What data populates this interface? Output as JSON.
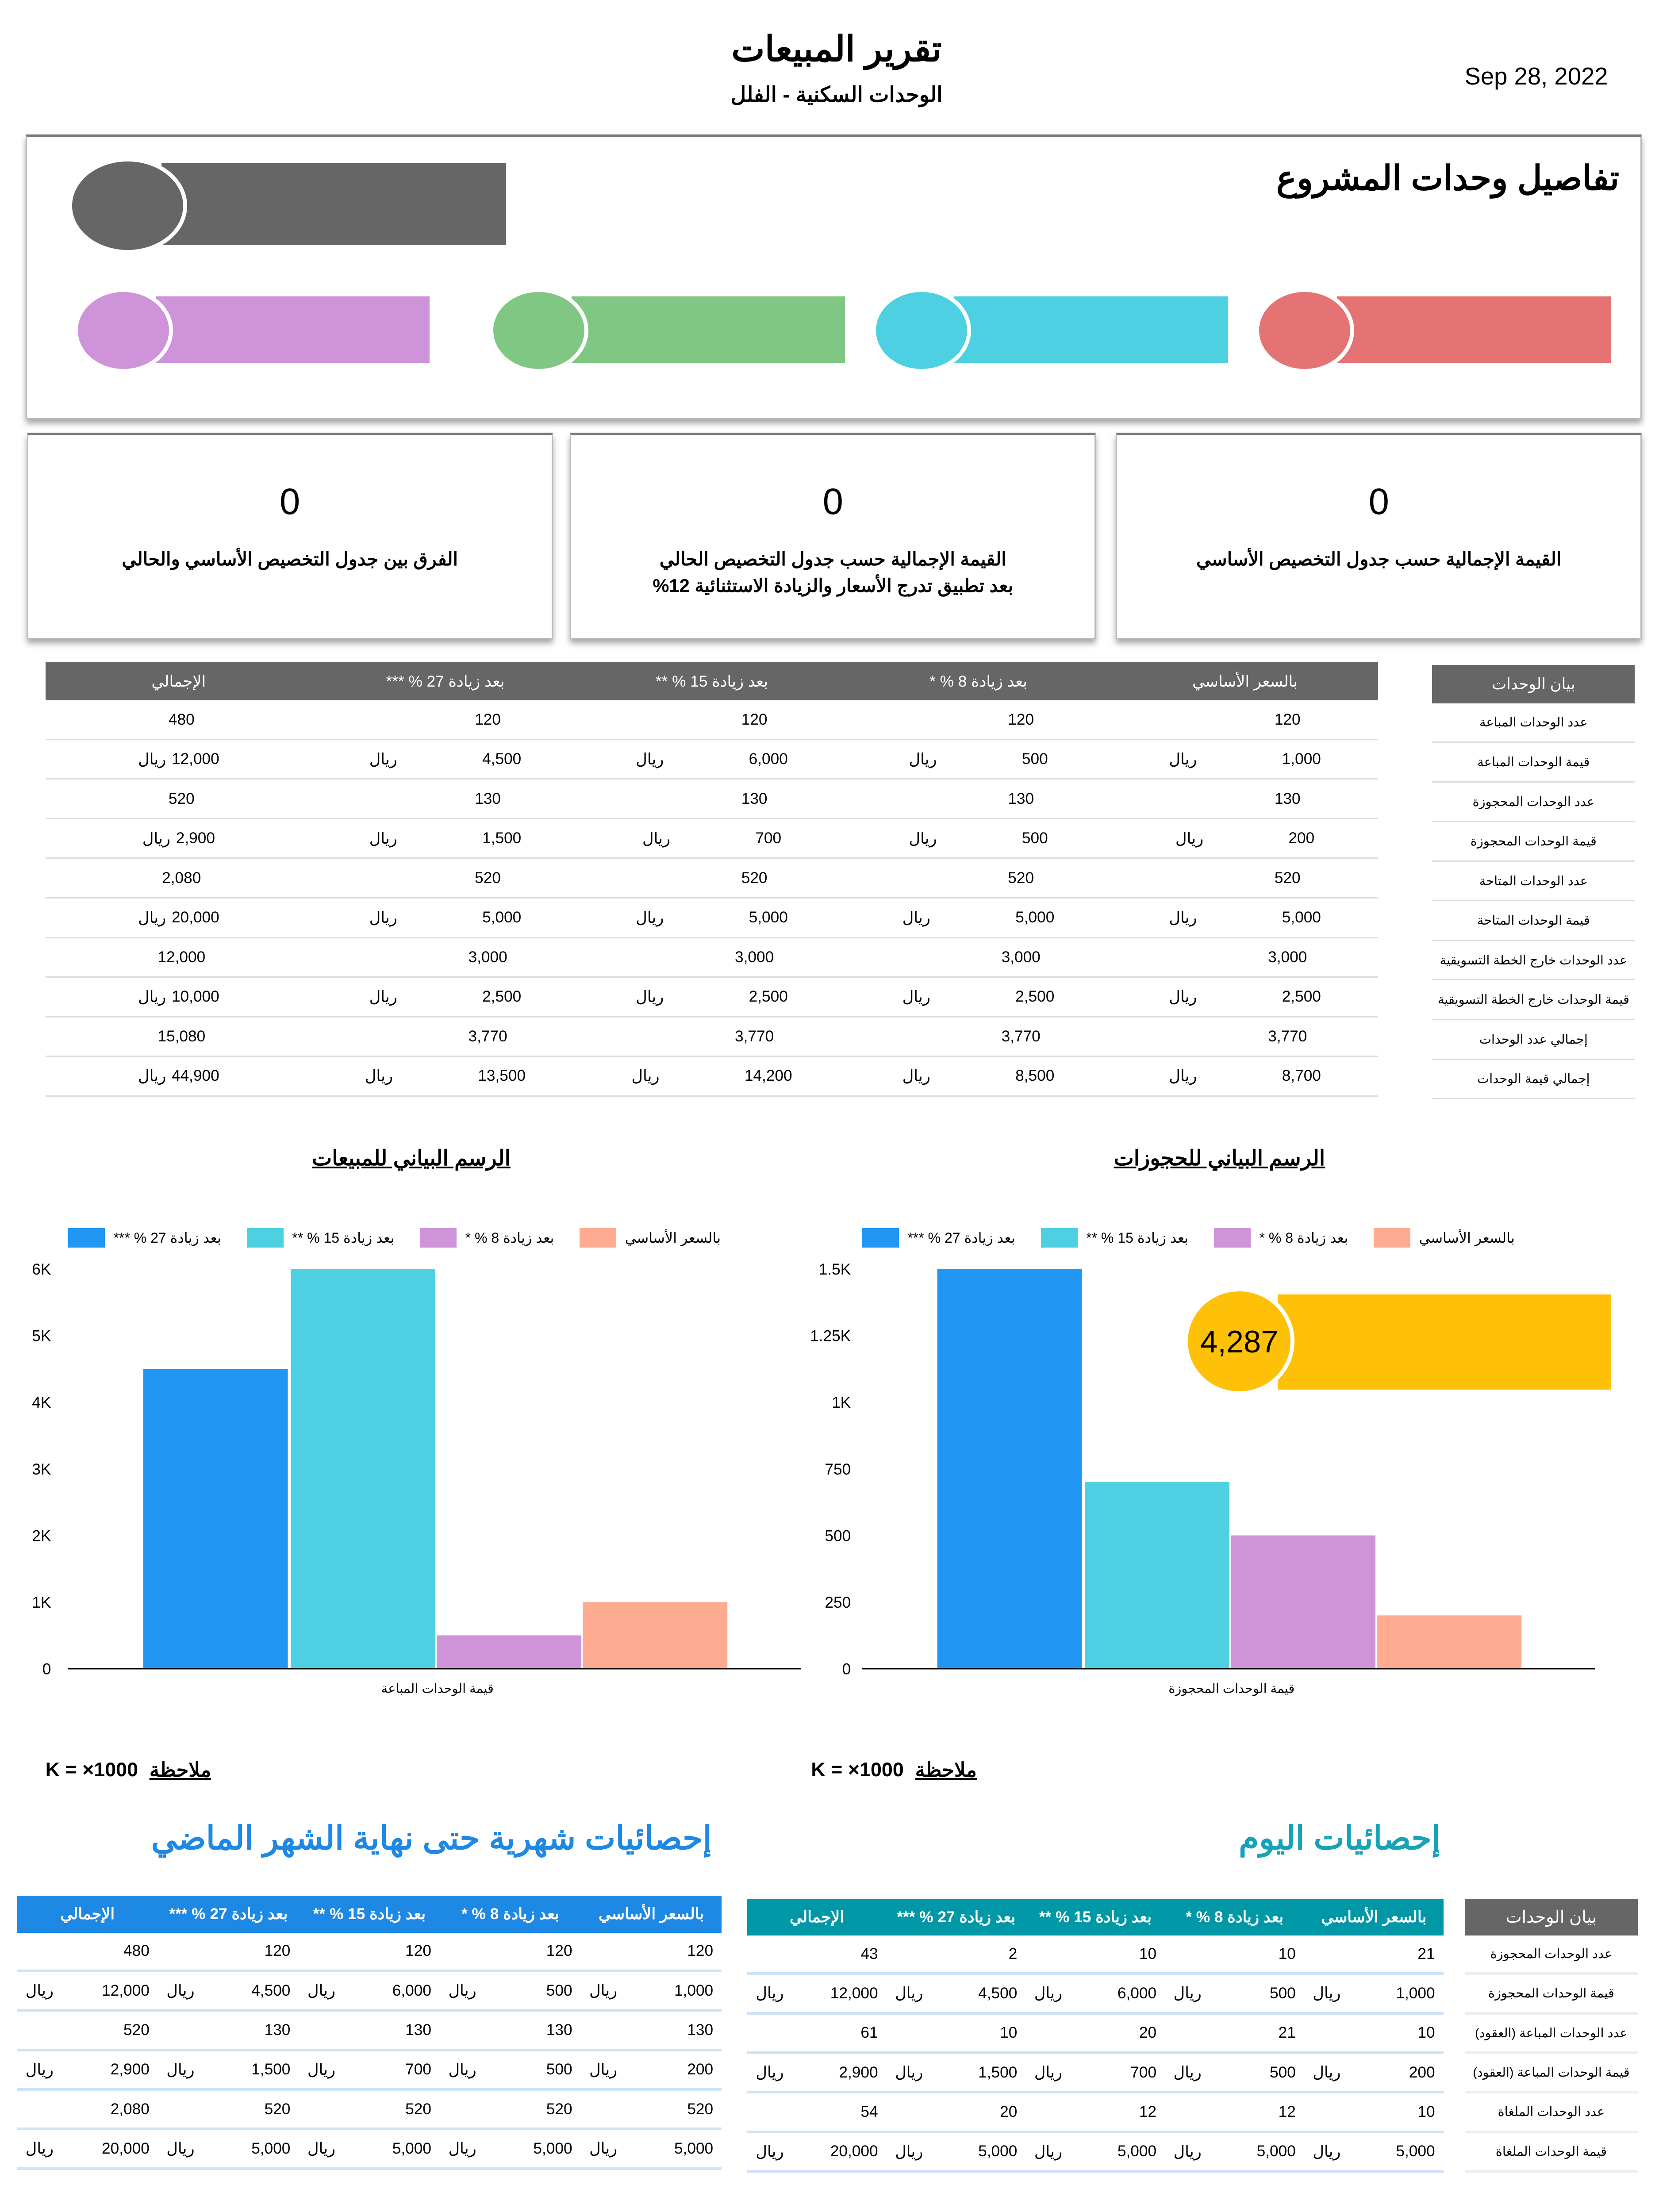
{
  "header": {
    "title": "تقرير المبيعات",
    "subtitle": "الوحدات السكنية - الفلل",
    "date": "Sep 28, 2022"
  },
  "project": {
    "title": "تفاصيل وحدات المشروع",
    "pill_colors": {
      "main": "#666666",
      "purple": "#ce93d8",
      "green": "#81c784",
      "cyan": "#4dd0e1",
      "red": "#e57373"
    }
  },
  "kpis": [
    {
      "value": "0",
      "label": "القيمة الإجمالية حسب جدول التخصيص الأساسي"
    },
    {
      "value": "0",
      "label": "القيمة الإجمالية حسب جدول التخصيص الحالي",
      "label2": "بعد تطبيق تدرج الأسعار والزيادة الاستثنائية 12%"
    },
    {
      "value": "0",
      "label": "الفرق بين جدول التخصيص الأساسي والحالي"
    }
  ],
  "currency": "ريال",
  "columns": [
    "بالسعر الأساسي",
    "بعد زيادة 8 % *",
    "بعد زيادة 15 % **",
    "بعد زيادة 27 % ***",
    "الإجمالي"
  ],
  "main_table": {
    "side_header": "بيان الوحدات",
    "rows": [
      {
        "label": "عدد الوحدات المباعة",
        "values": [
          "120",
          "120",
          "120",
          "120",
          "480"
        ],
        "money": false
      },
      {
        "label": "قيمة الوحدات المباعة",
        "values": [
          "1,000",
          "500",
          "6,000",
          "4,500",
          "12,000"
        ],
        "money": true
      },
      {
        "label": "عدد الوحدات المحجوزة",
        "values": [
          "130",
          "130",
          "130",
          "130",
          "520"
        ],
        "money": false
      },
      {
        "label": "قيمة الوحدات المحجوزة",
        "values": [
          "200",
          "500",
          "700",
          "1,500",
          "2,900"
        ],
        "money": true
      },
      {
        "label": "عدد الوحدات المتاحة",
        "values": [
          "520",
          "520",
          "520",
          "520",
          "2,080"
        ],
        "money": false
      },
      {
        "label": "قيمة الوحدات المتاحة",
        "values": [
          "5,000",
          "5,000",
          "5,000",
          "5,000",
          "20,000"
        ],
        "money": true
      },
      {
        "label": "عدد الوحدات خارج الخطة التسويقية",
        "values": [
          "3,000",
          "3,000",
          "3,000",
          "3,000",
          "12,000"
        ],
        "money": false
      },
      {
        "label": "قيمة الوحدات خارج الخطة التسويقية",
        "values": [
          "2,500",
          "2,500",
          "2,500",
          "2,500",
          "10,000"
        ],
        "money": true
      },
      {
        "label": "إجمالي عدد الوحدات",
        "values": [
          "3,770",
          "3,770",
          "3,770",
          "3,770",
          "15,080"
        ],
        "money": false
      },
      {
        "label": "إجمالي قيمة الوحدات",
        "values": [
          "8,700",
          "8,500",
          "14,200",
          "13,500",
          "44,900"
        ],
        "money": true
      }
    ]
  },
  "chart_data": [
    {
      "type": "bar",
      "title": "الرسم البياني للمبيعات",
      "xlabel": "قيمة الوحدات المباعة",
      "ylim": [
        0,
        6000
      ],
      "yticks": [
        "0",
        "1K",
        "2K",
        "3K",
        "4K",
        "5K",
        "6K"
      ],
      "ytick_values": [
        0,
        1000,
        2000,
        3000,
        4000,
        5000,
        6000
      ],
      "series": [
        {
          "name": "بعد زيادة 27 % ***",
          "value": 4500,
          "color": "#2196f3"
        },
        {
          "name": "بعد زيادة 15 % **",
          "value": 6000,
          "color": "#4dd0e1"
        },
        {
          "name": "بعد زيادة 8 % *",
          "value": 500,
          "color": "#ce93d8"
        },
        {
          "name": "بالسعر الأساسي",
          "value": 1000,
          "color": "#ffab91"
        }
      ],
      "legend": "top",
      "note": "ملاحظة",
      "note_value": "K = ×1000"
    },
    {
      "type": "bar",
      "title": "الرسم البياني للحجوزات",
      "xlabel": "قيمة الوحدات المحجوزة",
      "ylim": [
        0,
        1500
      ],
      "yticks": [
        "0",
        "250",
        "500",
        "750",
        "1K",
        "1.25K",
        "1.5K"
      ],
      "ytick_values": [
        0,
        250,
        500,
        750,
        1000,
        1250,
        1500
      ],
      "series": [
        {
          "name": "بعد زيادة 27 % ***",
          "value": 1500,
          "color": "#2196f3"
        },
        {
          "name": "بعد زيادة 15 % **",
          "value": 700,
          "color": "#4dd0e1"
        },
        {
          "name": "بعد زيادة 8 % *",
          "value": 500,
          "color": "#ce93d8"
        },
        {
          "name": "بالسعر الأساسي",
          "value": 200,
          "color": "#ffab91"
        }
      ],
      "legend": "top",
      "note": "ملاحظة",
      "note_value": "K = ×1000",
      "badge": {
        "value": "4,287",
        "color": "#ffc107"
      }
    }
  ],
  "monthly": {
    "title": "إحصائيات شهرية حتى نهاية الشهر الماضي",
    "color": "#1e88e5",
    "rows": [
      {
        "values": [
          "120",
          "120",
          "120",
          "120",
          "480"
        ],
        "money": false
      },
      {
        "values": [
          "1,000",
          "500",
          "6,000",
          "4,500",
          "12,000"
        ],
        "money": true
      },
      {
        "values": [
          "130",
          "130",
          "130",
          "130",
          "520"
        ],
        "money": false
      },
      {
        "values": [
          "200",
          "500",
          "700",
          "1,500",
          "2,900"
        ],
        "money": true
      },
      {
        "values": [
          "520",
          "520",
          "520",
          "520",
          "2,080"
        ],
        "money": false
      },
      {
        "values": [
          "5,000",
          "5,000",
          "5,000",
          "5,000",
          "20,000"
        ],
        "money": true
      }
    ]
  },
  "today": {
    "title": "إحصائيات اليوم",
    "color": "#0097a7",
    "side_header": "بيان الوحدات",
    "rows": [
      {
        "label": "عدد الوحدات المحجوزة",
        "values": [
          "21",
          "10",
          "10",
          "2",
          "43"
        ],
        "money": false
      },
      {
        "label": "قيمة الوحدات المحجوزة",
        "values": [
          "1,000",
          "500",
          "6,000",
          "4,500",
          "12,000"
        ],
        "money": true
      },
      {
        "label": "عدد الوحدات المباعة (العقود)",
        "values": [
          "10",
          "21",
          "20",
          "10",
          "61"
        ],
        "money": false
      },
      {
        "label": "قيمة الوحدات المباعة (العقود)",
        "values": [
          "200",
          "500",
          "700",
          "1,500",
          "2,900"
        ],
        "money": true
      },
      {
        "label": "عدد الوحدات الملغاة",
        "values": [
          "10",
          "12",
          "12",
          "20",
          "54"
        ],
        "money": false
      },
      {
        "label": "قيمة الوحدات الملغاة",
        "values": [
          "5,000",
          "5,000",
          "5,000",
          "5,000",
          "20,000"
        ],
        "money": true
      }
    ]
  }
}
